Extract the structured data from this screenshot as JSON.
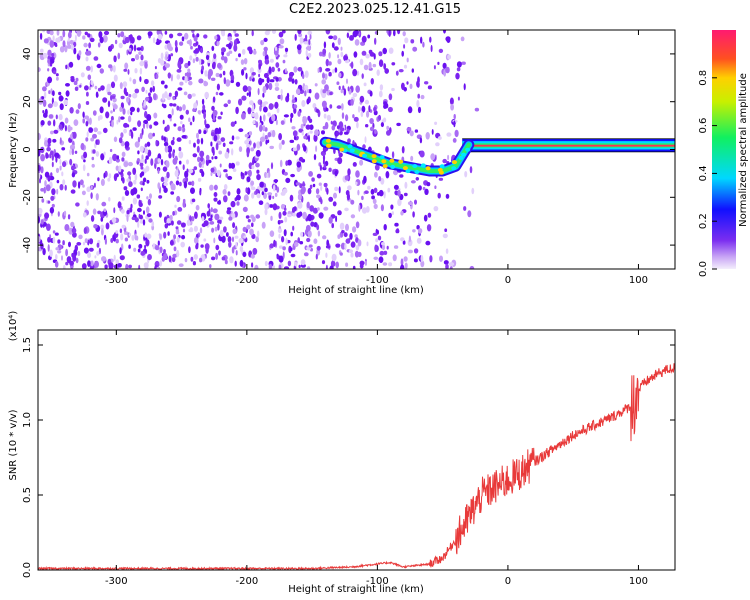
{
  "title": "C2E2.2023.025.12.41.G15",
  "chart_data": [
    {
      "type": "heatmap",
      "xlabel": "Height of straight line (km)",
      "ylabel": "Frequency (Hz)",
      "xlim": [
        -360,
        128
      ],
      "ylim": [
        -50,
        50
      ],
      "x_ticks": [
        -300,
        -200,
        -100,
        0,
        100
      ],
      "x_tick_labels": [
        "-300",
        "-200",
        "-100",
        "0",
        "100"
      ],
      "y_ticks": [
        -40,
        -20,
        0,
        20,
        40
      ],
      "y_tick_labels": [
        "-40",
        "-20",
        "0",
        "20",
        "40"
      ],
      "colorbar": {
        "label": "Normalized spectral amplitude",
        "range": [
          0,
          1
        ],
        "ticks": [
          0.0,
          0.2,
          0.4,
          0.6,
          0.8
        ],
        "tick_labels": [
          "0.0",
          "0.2",
          "0.4",
          "0.6",
          "0.8"
        ]
      },
      "signal_trace": {
        "x": [
          -140,
          -130,
          -120,
          -110,
          -100,
          -90,
          -80,
          -70,
          -60,
          -50,
          -40,
          -30,
          -20,
          -10,
          0,
          20,
          50,
          90,
          128
        ],
        "frequency": [
          3,
          2,
          0,
          -2,
          -4,
          -6,
          -7,
          -8,
          -9,
          -9,
          -7,
          2,
          1,
          1,
          1,
          1,
          1,
          1,
          1
        ]
      },
      "noise_region_x": [
        -360,
        -20
      ]
    },
    {
      "type": "line",
      "xlabel": "Height of straight line (km)",
      "ylabel": "SNR (10 * v/v)",
      "y_multiplier": "(x10⁴)",
      "xlim": [
        -360,
        128
      ],
      "ylim": [
        0,
        1.6
      ],
      "x_ticks": [
        -300,
        -200,
        -100,
        0,
        100
      ],
      "x_tick_labels": [
        "-300",
        "-200",
        "-100",
        "0",
        "100"
      ],
      "y_ticks": [
        0.0,
        0.5,
        1.0,
        1.5
      ],
      "y_tick_labels": [
        "0.0",
        "0.5",
        "1.0",
        "1.5"
      ],
      "color": "#e83a3a",
      "series": [
        {
          "x": [
            -360,
            -300,
            -250,
            -200,
            -150,
            -120,
            -100,
            -90,
            -80,
            -60,
            -50,
            -40,
            -30,
            -20,
            -10,
            0,
            10,
            20,
            30,
            40,
            50,
            60,
            70,
            80,
            90,
            95,
            98,
            100,
            105,
            110,
            115,
            120,
            128
          ],
          "y": [
            0.01,
            0.01,
            0.01,
            0.01,
            0.01,
            0.02,
            0.04,
            0.05,
            0.02,
            0.04,
            0.08,
            0.2,
            0.35,
            0.5,
            0.55,
            0.6,
            0.65,
            0.72,
            0.78,
            0.84,
            0.9,
            0.94,
            0.98,
            1.02,
            1.07,
            1.1,
            1.15,
            1.2,
            1.25,
            1.28,
            1.31,
            1.33,
            1.35
          ]
        }
      ]
    }
  ]
}
